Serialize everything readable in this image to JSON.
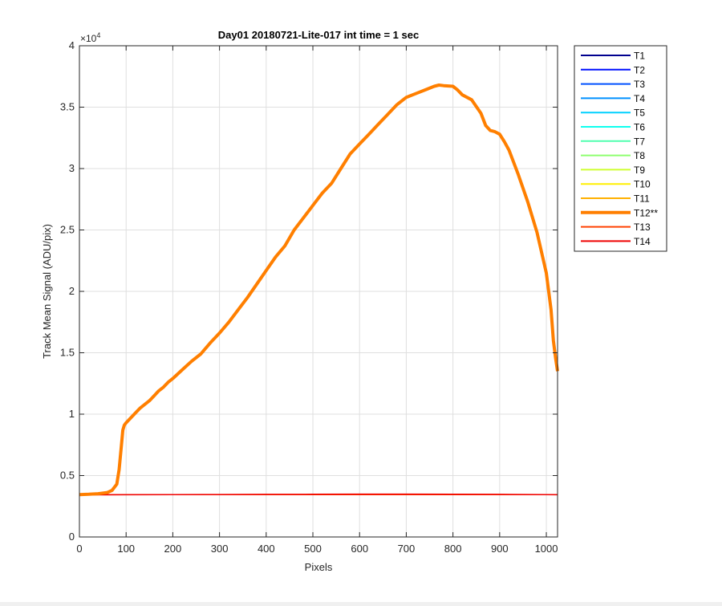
{
  "chart_data": {
    "type": "line",
    "title": "Day01 20180721-Lite-017 int time = 1 sec",
    "xlabel": "Pixels",
    "ylabel": "Track Mean Signal (ADU/pix)",
    "y_exponent_label": "×10",
    "y_exponent_power": "4",
    "xlim": [
      0,
      1024
    ],
    "ylim": [
      0,
      40000
    ],
    "x_ticks": [
      0,
      100,
      200,
      300,
      400,
      500,
      600,
      700,
      800,
      900,
      1000
    ],
    "x_tick_labels": [
      "0",
      "100",
      "200",
      "300",
      "400",
      "500",
      "600",
      "700",
      "800",
      "900",
      "1000"
    ],
    "y_ticks": [
      0,
      5000,
      10000,
      15000,
      20000,
      25000,
      30000,
      35000,
      40000
    ],
    "y_tick_labels": [
      "0",
      "0.5",
      "1",
      "1.5",
      "2",
      "2.5",
      "3",
      "3.5",
      "4"
    ],
    "grid": true,
    "legend_position": "outside-right-top",
    "series": [
      {
        "name": "T1",
        "color": "#00008f",
        "width": "normal",
        "x": [
          0,
          1024
        ],
        "y": [
          3450,
          3450
        ]
      },
      {
        "name": "T2",
        "color": "#0010ff",
        "width": "normal",
        "x": [
          0,
          1024
        ],
        "y": [
          3450,
          3450
        ]
      },
      {
        "name": "T3",
        "color": "#0050ff",
        "width": "normal",
        "x": [
          0,
          1024
        ],
        "y": [
          3450,
          3450
        ]
      },
      {
        "name": "T4",
        "color": "#0090ff",
        "width": "normal",
        "x": [
          0,
          1024
        ],
        "y": [
          3450,
          3450
        ]
      },
      {
        "name": "T5",
        "color": "#00d0ff",
        "width": "normal",
        "x": [
          0,
          1024
        ],
        "y": [
          3450,
          3450
        ]
      },
      {
        "name": "T6",
        "color": "#10ffef",
        "width": "normal",
        "x": [
          0,
          1024
        ],
        "y": [
          3450,
          3450
        ]
      },
      {
        "name": "T7",
        "color": "#50ffaf",
        "width": "normal",
        "x": [
          0,
          1024
        ],
        "y": [
          3450,
          3450
        ]
      },
      {
        "name": "T8",
        "color": "#8fff70",
        "width": "normal",
        "x": [
          0,
          1024
        ],
        "y": [
          3450,
          3450
        ]
      },
      {
        "name": "T9",
        "color": "#cfff30",
        "width": "normal",
        "x": [
          0,
          1024
        ],
        "y": [
          3450,
          3450
        ]
      },
      {
        "name": "T10",
        "color": "#ffef00",
        "width": "normal",
        "x": [
          0,
          1024
        ],
        "y": [
          3450,
          3450
        ]
      },
      {
        "name": "T11",
        "color": "#ffb000",
        "width": "normal",
        "x": [
          0,
          1024
        ],
        "y": [
          3450,
          3450
        ]
      },
      {
        "name": "T12**",
        "color": "#ff7f00",
        "width": "thick",
        "x": [
          0,
          20,
          40,
          60,
          70,
          80,
          85,
          90,
          93,
          96,
          100,
          110,
          120,
          130,
          140,
          150,
          160,
          170,
          180,
          190,
          200,
          220,
          240,
          260,
          280,
          300,
          320,
          340,
          360,
          380,
          400,
          420,
          440,
          460,
          480,
          500,
          520,
          540,
          560,
          580,
          600,
          620,
          640,
          660,
          680,
          700,
          720,
          740,
          760,
          770,
          780,
          800,
          810,
          820,
          840,
          860,
          870,
          880,
          890,
          900,
          910,
          920,
          940,
          960,
          980,
          1000,
          1010,
          1015,
          1020,
          1024
        ],
        "y": [
          3450,
          3480,
          3520,
          3620,
          3800,
          4300,
          5500,
          7500,
          8700,
          9100,
          9300,
          9700,
          10100,
          10500,
          10800,
          11100,
          11500,
          11900,
          12200,
          12600,
          12900,
          13600,
          14300,
          14900,
          15800,
          16600,
          17500,
          18500,
          19500,
          20600,
          21700,
          22800,
          23700,
          25000,
          26000,
          27000,
          28000,
          28800,
          30000,
          31200,
          32000,
          32800,
          33600,
          34400,
          35200,
          35800,
          36100,
          36400,
          36700,
          36800,
          36750,
          36700,
          36400,
          36000,
          35600,
          34500,
          33500,
          33100,
          33000,
          32800,
          32200,
          31500,
          29500,
          27300,
          24800,
          21500,
          18500,
          16000,
          14500,
          13500
        ]
      },
      {
        "name": "T13",
        "color": "#ff4000",
        "width": "normal",
        "x": [
          0,
          1024
        ],
        "y": [
          3450,
          3450
        ]
      },
      {
        "name": "T14",
        "color": "#ef0000",
        "width": "normal",
        "x": [
          0,
          100,
          200,
          300,
          400,
          500,
          600,
          700,
          800,
          900,
          1000,
          1024
        ],
        "y": [
          3430,
          3440,
          3450,
          3460,
          3470,
          3480,
          3490,
          3490,
          3480,
          3470,
          3450,
          3440
        ]
      }
    ]
  }
}
